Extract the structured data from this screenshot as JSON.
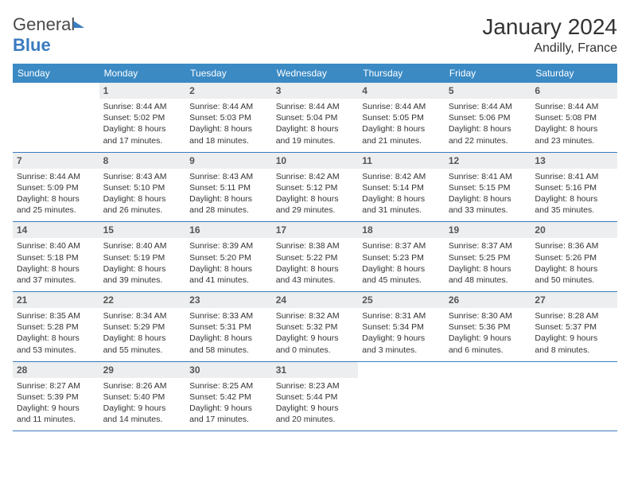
{
  "brand": {
    "part1": "General",
    "part2": "Blue"
  },
  "title": "January 2024",
  "location": "Andilly, France",
  "dow": [
    "Sunday",
    "Monday",
    "Tuesday",
    "Wednesday",
    "Thursday",
    "Friday",
    "Saturday"
  ],
  "colors": {
    "header_bg": "#3b8ac4",
    "border": "#3b7bbf",
    "daynum_bg": "#eceeef"
  },
  "weeks": [
    [
      {
        "num": "",
        "lines": [
          "",
          "",
          "",
          ""
        ]
      },
      {
        "num": "1",
        "lines": [
          "Sunrise: 8:44 AM",
          "Sunset: 5:02 PM",
          "Daylight: 8 hours",
          "and 17 minutes."
        ]
      },
      {
        "num": "2",
        "lines": [
          "Sunrise: 8:44 AM",
          "Sunset: 5:03 PM",
          "Daylight: 8 hours",
          "and 18 minutes."
        ]
      },
      {
        "num": "3",
        "lines": [
          "Sunrise: 8:44 AM",
          "Sunset: 5:04 PM",
          "Daylight: 8 hours",
          "and 19 minutes."
        ]
      },
      {
        "num": "4",
        "lines": [
          "Sunrise: 8:44 AM",
          "Sunset: 5:05 PM",
          "Daylight: 8 hours",
          "and 21 minutes."
        ]
      },
      {
        "num": "5",
        "lines": [
          "Sunrise: 8:44 AM",
          "Sunset: 5:06 PM",
          "Daylight: 8 hours",
          "and 22 minutes."
        ]
      },
      {
        "num": "6",
        "lines": [
          "Sunrise: 8:44 AM",
          "Sunset: 5:08 PM",
          "Daylight: 8 hours",
          "and 23 minutes."
        ]
      }
    ],
    [
      {
        "num": "7",
        "lines": [
          "Sunrise: 8:44 AM",
          "Sunset: 5:09 PM",
          "Daylight: 8 hours",
          "and 25 minutes."
        ]
      },
      {
        "num": "8",
        "lines": [
          "Sunrise: 8:43 AM",
          "Sunset: 5:10 PM",
          "Daylight: 8 hours",
          "and 26 minutes."
        ]
      },
      {
        "num": "9",
        "lines": [
          "Sunrise: 8:43 AM",
          "Sunset: 5:11 PM",
          "Daylight: 8 hours",
          "and 28 minutes."
        ]
      },
      {
        "num": "10",
        "lines": [
          "Sunrise: 8:42 AM",
          "Sunset: 5:12 PM",
          "Daylight: 8 hours",
          "and 29 minutes."
        ]
      },
      {
        "num": "11",
        "lines": [
          "Sunrise: 8:42 AM",
          "Sunset: 5:14 PM",
          "Daylight: 8 hours",
          "and 31 minutes."
        ]
      },
      {
        "num": "12",
        "lines": [
          "Sunrise: 8:41 AM",
          "Sunset: 5:15 PM",
          "Daylight: 8 hours",
          "and 33 minutes."
        ]
      },
      {
        "num": "13",
        "lines": [
          "Sunrise: 8:41 AM",
          "Sunset: 5:16 PM",
          "Daylight: 8 hours",
          "and 35 minutes."
        ]
      }
    ],
    [
      {
        "num": "14",
        "lines": [
          "Sunrise: 8:40 AM",
          "Sunset: 5:18 PM",
          "Daylight: 8 hours",
          "and 37 minutes."
        ]
      },
      {
        "num": "15",
        "lines": [
          "Sunrise: 8:40 AM",
          "Sunset: 5:19 PM",
          "Daylight: 8 hours",
          "and 39 minutes."
        ]
      },
      {
        "num": "16",
        "lines": [
          "Sunrise: 8:39 AM",
          "Sunset: 5:20 PM",
          "Daylight: 8 hours",
          "and 41 minutes."
        ]
      },
      {
        "num": "17",
        "lines": [
          "Sunrise: 8:38 AM",
          "Sunset: 5:22 PM",
          "Daylight: 8 hours",
          "and 43 minutes."
        ]
      },
      {
        "num": "18",
        "lines": [
          "Sunrise: 8:37 AM",
          "Sunset: 5:23 PM",
          "Daylight: 8 hours",
          "and 45 minutes."
        ]
      },
      {
        "num": "19",
        "lines": [
          "Sunrise: 8:37 AM",
          "Sunset: 5:25 PM",
          "Daylight: 8 hours",
          "and 48 minutes."
        ]
      },
      {
        "num": "20",
        "lines": [
          "Sunrise: 8:36 AM",
          "Sunset: 5:26 PM",
          "Daylight: 8 hours",
          "and 50 minutes."
        ]
      }
    ],
    [
      {
        "num": "21",
        "lines": [
          "Sunrise: 8:35 AM",
          "Sunset: 5:28 PM",
          "Daylight: 8 hours",
          "and 53 minutes."
        ]
      },
      {
        "num": "22",
        "lines": [
          "Sunrise: 8:34 AM",
          "Sunset: 5:29 PM",
          "Daylight: 8 hours",
          "and 55 minutes."
        ]
      },
      {
        "num": "23",
        "lines": [
          "Sunrise: 8:33 AM",
          "Sunset: 5:31 PM",
          "Daylight: 8 hours",
          "and 58 minutes."
        ]
      },
      {
        "num": "24",
        "lines": [
          "Sunrise: 8:32 AM",
          "Sunset: 5:32 PM",
          "Daylight: 9 hours",
          "and 0 minutes."
        ]
      },
      {
        "num": "25",
        "lines": [
          "Sunrise: 8:31 AM",
          "Sunset: 5:34 PM",
          "Daylight: 9 hours",
          "and 3 minutes."
        ]
      },
      {
        "num": "26",
        "lines": [
          "Sunrise: 8:30 AM",
          "Sunset: 5:36 PM",
          "Daylight: 9 hours",
          "and 6 minutes."
        ]
      },
      {
        "num": "27",
        "lines": [
          "Sunrise: 8:28 AM",
          "Sunset: 5:37 PM",
          "Daylight: 9 hours",
          "and 8 minutes."
        ]
      }
    ],
    [
      {
        "num": "28",
        "lines": [
          "Sunrise: 8:27 AM",
          "Sunset: 5:39 PM",
          "Daylight: 9 hours",
          "and 11 minutes."
        ]
      },
      {
        "num": "29",
        "lines": [
          "Sunrise: 8:26 AM",
          "Sunset: 5:40 PM",
          "Daylight: 9 hours",
          "and 14 minutes."
        ]
      },
      {
        "num": "30",
        "lines": [
          "Sunrise: 8:25 AM",
          "Sunset: 5:42 PM",
          "Daylight: 9 hours",
          "and 17 minutes."
        ]
      },
      {
        "num": "31",
        "lines": [
          "Sunrise: 8:23 AM",
          "Sunset: 5:44 PM",
          "Daylight: 9 hours",
          "and 20 minutes."
        ]
      },
      {
        "num": "",
        "lines": [
          "",
          "",
          "",
          ""
        ]
      },
      {
        "num": "",
        "lines": [
          "",
          "",
          "",
          ""
        ]
      },
      {
        "num": "",
        "lines": [
          "",
          "",
          "",
          ""
        ]
      }
    ]
  ]
}
